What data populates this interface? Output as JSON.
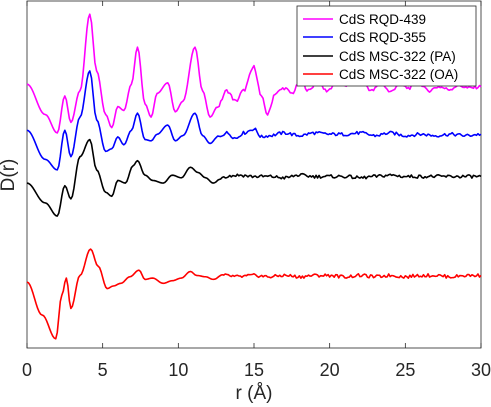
{
  "chart_data": {
    "type": "line",
    "xlabel": "r (Å)",
    "ylabel": "D(r)",
    "xlim": [
      0,
      30
    ],
    "xticks": [
      0,
      5,
      10,
      15,
      20,
      25,
      30
    ],
    "y_tick_labels": "none",
    "y_offset_note": "",
    "legend_position": "top-right",
    "series": [
      {
        "name": "CdS RQD-439",
        "color": "#ff00ff",
        "x": [
          0.0,
          1.2,
          2.0,
          2.5,
          2.9,
          3.5,
          4.15,
          4.6,
          5.2,
          5.6,
          6.0,
          6.4,
          6.9,
          7.3,
          7.8,
          8.2,
          8.6,
          9.3,
          9.8,
          10.3,
          11.1,
          11.6,
          12.1,
          12.6,
          13.2,
          13.8,
          14.3,
          15.0,
          15.5,
          15.9,
          16.4,
          17.0,
          17.5,
          18.1,
          18.6,
          19.2,
          19.8,
          20.5,
          21.2,
          22.0,
          22.8,
          23.4,
          24.0,
          24.6,
          25.2,
          25.9,
          26.5,
          27.2,
          27.9,
          28.5,
          29.2,
          30.0
        ],
        "y": [
          0.95,
          0.72,
          0.58,
          0.86,
          0.66,
          0.9,
          1.48,
          1.05,
          0.72,
          0.62,
          0.78,
          0.75,
          0.95,
          1.23,
          0.8,
          0.7,
          0.88,
          0.96,
          0.74,
          0.82,
          1.23,
          0.9,
          0.7,
          0.78,
          0.9,
          0.82,
          0.9,
          1.08,
          0.85,
          0.72,
          0.88,
          0.92,
          0.88,
          0.98,
          0.9,
          0.97,
          0.9,
          0.96,
          0.94,
          0.99,
          0.9,
          0.96,
          0.89,
          0.95,
          0.92,
          0.96,
          0.9,
          0.93,
          0.91,
          0.94,
          0.92,
          0.93
        ]
      },
      {
        "name": "CdS RQD-355",
        "color": "#0000ff",
        "x": [
          0.0,
          1.2,
          2.0,
          2.5,
          2.9,
          3.5,
          4.15,
          4.6,
          5.2,
          5.6,
          6.0,
          6.4,
          6.9,
          7.3,
          7.8,
          8.2,
          8.6,
          9.3,
          9.8,
          10.3,
          11.1,
          11.6,
          12.1,
          12.6,
          13.2,
          13.8,
          14.3,
          15.0,
          15.5,
          16.0,
          17.0,
          18.0,
          19.0,
          20.0,
          21.0,
          22.0,
          23.0,
          24.0,
          25.0,
          26.0,
          27.0,
          28.0,
          29.0,
          30.0
        ],
        "y": [
          0.6,
          0.38,
          0.3,
          0.6,
          0.4,
          0.7,
          1.05,
          0.68,
          0.44,
          0.46,
          0.55,
          0.49,
          0.6,
          0.73,
          0.53,
          0.52,
          0.57,
          0.64,
          0.52,
          0.56,
          0.73,
          0.56,
          0.5,
          0.55,
          0.58,
          0.54,
          0.58,
          0.61,
          0.55,
          0.56,
          0.58,
          0.56,
          0.58,
          0.57,
          0.57,
          0.58,
          0.56,
          0.58,
          0.56,
          0.57,
          0.56,
          0.57,
          0.56,
          0.57
        ]
      },
      {
        "name": "CdS MSC-322 (PA)",
        "color": "#000000",
        "x": [
          0.0,
          1.2,
          2.0,
          2.5,
          2.9,
          3.5,
          4.15,
          4.6,
          5.2,
          5.6,
          6.0,
          6.5,
          7.0,
          7.3,
          7.8,
          8.3,
          9.0,
          9.6,
          10.2,
          10.8,
          11.3,
          11.8,
          12.3,
          13.0,
          14.0,
          15.0,
          16.0,
          17.0,
          18.0,
          19.0,
          20.0,
          21.0,
          22.0,
          23.0,
          24.0,
          25.0,
          26.0,
          27.0,
          28.0,
          29.0,
          30.0
        ],
        "y": [
          0.2,
          0.05,
          -0.05,
          0.18,
          0.08,
          0.4,
          0.53,
          0.3,
          0.13,
          0.1,
          0.22,
          0.2,
          0.33,
          0.37,
          0.26,
          0.22,
          0.2,
          0.26,
          0.24,
          0.32,
          0.28,
          0.24,
          0.2,
          0.25,
          0.26,
          0.25,
          0.25,
          0.24,
          0.26,
          0.25,
          0.25,
          0.25,
          0.24,
          0.25,
          0.26,
          0.25,
          0.25,
          0.25,
          0.25,
          0.25,
          0.25
        ]
      },
      {
        "name": "CdS MSC-322 (OA)",
        "color": "#ff0000",
        "x": [
          0.0,
          1.0,
          1.9,
          2.3,
          2.6,
          2.9,
          3.5,
          4.2,
          4.7,
          5.3,
          5.7,
          6.2,
          6.8,
          7.4,
          7.8,
          8.3,
          9.0,
          9.6,
          10.2,
          10.8,
          11.2,
          11.8,
          12.3,
          13.0,
          14.0,
          15.0,
          16.0,
          17.0,
          18.0,
          19.0,
          20.0,
          21.0,
          22.0,
          23.0,
          24.0,
          25.0,
          26.0,
          27.0,
          28.0,
          29.0,
          30.0
        ],
        "y": [
          -0.55,
          -0.8,
          -0.98,
          -0.65,
          -0.52,
          -0.75,
          -0.5,
          -0.3,
          -0.43,
          -0.6,
          -0.58,
          -0.56,
          -0.51,
          -0.46,
          -0.53,
          -0.52,
          -0.56,
          -0.54,
          -0.52,
          -0.47,
          -0.5,
          -0.51,
          -0.53,
          -0.5,
          -0.51,
          -0.5,
          -0.51,
          -0.5,
          -0.51,
          -0.5,
          -0.5,
          -0.51,
          -0.5,
          -0.51,
          -0.5,
          -0.51,
          -0.5,
          -0.5,
          -0.51,
          -0.5,
          -0.5
        ]
      }
    ],
    "ylim": [
      -1.05,
      1.58
    ]
  }
}
